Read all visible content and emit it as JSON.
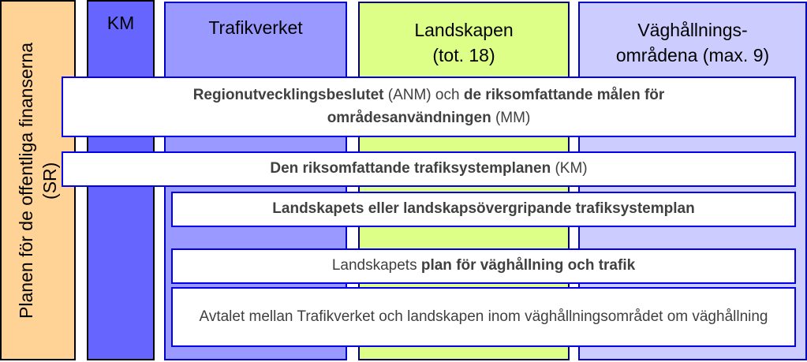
{
  "columns": {
    "sr": {
      "line1": "Planen för de offentliga finanserna",
      "line2": "(SR)",
      "color": "#ffd395"
    },
    "km": {
      "label": "KM",
      "color": "#6666ff"
    },
    "trafikverket": {
      "label": "Trafikverket",
      "color": "#9999ff"
    },
    "landskapen": {
      "line1": "Landskapen",
      "line2": "(tot. 18)",
      "color": "#ddff88"
    },
    "vaghallning": {
      "line1": "Väghållnings-",
      "line2": "områdena (max. 9)",
      "color": "#ccccff"
    }
  },
  "boxes": {
    "b1": {
      "bold1": "Regionutvecklingsbeslutet",
      "t1": " (ANM) och ",
      "bold2": "de riksomfattande målen för områdesanvändningen",
      "t2": " (MM)"
    },
    "b2": {
      "bold": "Den riksomfattande trafiksystemplanen",
      "t": " (KM)"
    },
    "b3": {
      "bold": "Landskapets eller landskapsövergripande trafiksystemplan"
    },
    "b4": {
      "t": "Landskapets ",
      "bold": "plan för väghållning och trafik"
    },
    "b5": {
      "t": "Avtalet mellan Trafikverket och landskapen inom väghållningsområdet om väghållning"
    }
  }
}
